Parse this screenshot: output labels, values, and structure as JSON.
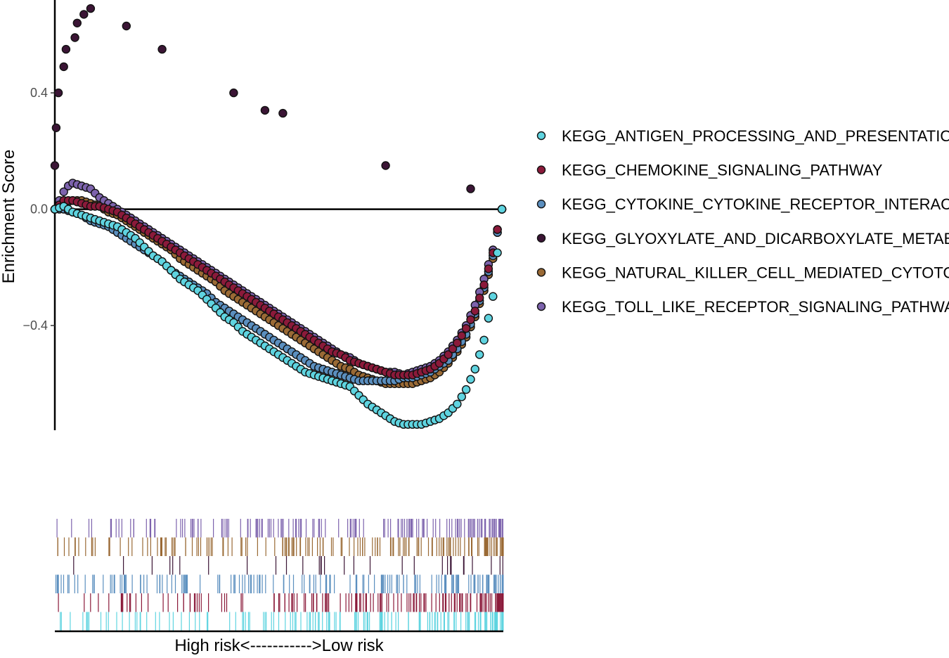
{
  "chart_data": {
    "type": "scatter",
    "title": "",
    "ylabel": "Enrichment Score",
    "xlabel": "High risk<----------->Low risk",
    "xlim": [
      0,
      100
    ],
    "ylim": [
      -0.76,
      0.7
    ],
    "yticks": [
      0.4,
      0.0,
      -0.4
    ],
    "ytick_labels": [
      "0.4",
      "0.0",
      "−0.4"
    ],
    "reference_line": 0.0,
    "legend": "right",
    "series": [
      {
        "name": "KEGG_ANTIGEN_PROCESSING_AND_PRESENTATION",
        "color": "#5fd4e0",
        "points": [
          [
            0,
            0
          ],
          [
            2,
            0.01
          ],
          [
            4,
            -0.01
          ],
          [
            6,
            -0.02
          ],
          [
            8,
            -0.03
          ],
          [
            10,
            -0.04
          ],
          [
            12,
            -0.05
          ],
          [
            14,
            -0.06
          ],
          [
            16,
            -0.08
          ],
          [
            18,
            -0.1
          ],
          [
            20,
            -0.13
          ],
          [
            22,
            -0.16
          ],
          [
            24,
            -0.18
          ],
          [
            26,
            -0.21
          ],
          [
            28,
            -0.24
          ],
          [
            30,
            -0.26
          ],
          [
            32,
            -0.28
          ],
          [
            34,
            -0.31
          ],
          [
            36,
            -0.34
          ],
          [
            38,
            -0.37
          ],
          [
            40,
            -0.39
          ],
          [
            42,
            -0.42
          ],
          [
            44,
            -0.44
          ],
          [
            46,
            -0.46
          ],
          [
            48,
            -0.48
          ],
          [
            50,
            -0.5
          ],
          [
            52,
            -0.52
          ],
          [
            54,
            -0.54
          ],
          [
            56,
            -0.56
          ],
          [
            58,
            -0.57
          ],
          [
            60,
            -0.58
          ],
          [
            62,
            -0.59
          ],
          [
            64,
            -0.6
          ],
          [
            66,
            -0.61
          ],
          [
            68,
            -0.64
          ],
          [
            70,
            -0.67
          ],
          [
            72,
            -0.69
          ],
          [
            74,
            -0.71
          ],
          [
            76,
            -0.73
          ],
          [
            78,
            -0.74
          ],
          [
            80,
            -0.74
          ],
          [
            82,
            -0.74
          ],
          [
            84,
            -0.73
          ],
          [
            86,
            -0.72
          ],
          [
            88,
            -0.7
          ],
          [
            90,
            -0.67
          ],
          [
            92,
            -0.62
          ],
          [
            94,
            -0.55
          ],
          [
            96,
            -0.45
          ],
          [
            98,
            -0.3
          ],
          [
            99,
            -0.15
          ],
          [
            100,
            0
          ]
        ]
      },
      {
        "name": "KEGG_CHEMOKINE_SIGNALING_PATHWAY",
        "color": "#8b1a3a",
        "points": [
          [
            0,
            0
          ],
          [
            2,
            0.03
          ],
          [
            4,
            0.03
          ],
          [
            6,
            0.02
          ],
          [
            8,
            0.01
          ],
          [
            10,
            0.01
          ],
          [
            12,
            0
          ],
          [
            14,
            -0.01
          ],
          [
            16,
            -0.03
          ],
          [
            18,
            -0.05
          ],
          [
            20,
            -0.07
          ],
          [
            22,
            -0.09
          ],
          [
            24,
            -0.11
          ],
          [
            26,
            -0.13
          ],
          [
            28,
            -0.15
          ],
          [
            30,
            -0.17
          ],
          [
            32,
            -0.19
          ],
          [
            34,
            -0.21
          ],
          [
            36,
            -0.23
          ],
          [
            38,
            -0.25
          ],
          [
            40,
            -0.27
          ],
          [
            42,
            -0.29
          ],
          [
            44,
            -0.31
          ],
          [
            46,
            -0.33
          ],
          [
            48,
            -0.35
          ],
          [
            50,
            -0.37
          ],
          [
            52,
            -0.39
          ],
          [
            54,
            -0.41
          ],
          [
            56,
            -0.43
          ],
          [
            58,
            -0.45
          ],
          [
            60,
            -0.47
          ],
          [
            62,
            -0.49
          ],
          [
            64,
            -0.5
          ],
          [
            66,
            -0.52
          ],
          [
            68,
            -0.53
          ],
          [
            70,
            -0.54
          ],
          [
            72,
            -0.55
          ],
          [
            74,
            -0.56
          ],
          [
            76,
            -0.57
          ],
          [
            78,
            -0.57
          ],
          [
            80,
            -0.57
          ],
          [
            82,
            -0.56
          ],
          [
            84,
            -0.55
          ],
          [
            86,
            -0.53
          ],
          [
            88,
            -0.5
          ],
          [
            90,
            -0.46
          ],
          [
            92,
            -0.41
          ],
          [
            94,
            -0.35
          ],
          [
            96,
            -0.26
          ],
          [
            98,
            -0.15
          ],
          [
            99,
            -0.07
          ],
          [
            100,
            0
          ]
        ]
      },
      {
        "name": "KEGG_CYTOKINE_CYTOKINE_RECEPTOR_INTERACTION",
        "color": "#5b8fbf",
        "points": [
          [
            0,
            0
          ],
          [
            2,
            0
          ],
          [
            4,
            -0.01
          ],
          [
            6,
            -0.02
          ],
          [
            8,
            -0.04
          ],
          [
            10,
            -0.05
          ],
          [
            12,
            -0.06
          ],
          [
            14,
            -0.08
          ],
          [
            16,
            -0.1
          ],
          [
            18,
            -0.12
          ],
          [
            20,
            -0.14
          ],
          [
            22,
            -0.16
          ],
          [
            24,
            -0.18
          ],
          [
            26,
            -0.21
          ],
          [
            28,
            -0.23
          ],
          [
            30,
            -0.25
          ],
          [
            32,
            -0.27
          ],
          [
            34,
            -0.29
          ],
          [
            36,
            -0.32
          ],
          [
            38,
            -0.34
          ],
          [
            40,
            -0.36
          ],
          [
            42,
            -0.38
          ],
          [
            44,
            -0.4
          ],
          [
            46,
            -0.42
          ],
          [
            48,
            -0.44
          ],
          [
            50,
            -0.46
          ],
          [
            52,
            -0.48
          ],
          [
            54,
            -0.5
          ],
          [
            56,
            -0.52
          ],
          [
            58,
            -0.54
          ],
          [
            60,
            -0.55
          ],
          [
            62,
            -0.56
          ],
          [
            64,
            -0.57
          ],
          [
            66,
            -0.58
          ],
          [
            68,
            -0.59
          ],
          [
            70,
            -0.59
          ],
          [
            72,
            -0.59
          ],
          [
            74,
            -0.59
          ],
          [
            76,
            -0.59
          ],
          [
            78,
            -0.58
          ],
          [
            80,
            -0.58
          ],
          [
            82,
            -0.57
          ],
          [
            84,
            -0.56
          ],
          [
            86,
            -0.54
          ],
          [
            88,
            -0.52
          ],
          [
            90,
            -0.48
          ],
          [
            92,
            -0.43
          ],
          [
            94,
            -0.36
          ],
          [
            96,
            -0.27
          ],
          [
            98,
            -0.16
          ],
          [
            99,
            -0.08
          ],
          [
            100,
            0
          ]
        ]
      },
      {
        "name": "KEGG_GLYOXYLATE_AND_DICARBOXYLATE_METABOLISM",
        "color": "#3b1535",
        "points": [
          [
            0,
            0.15
          ],
          [
            0.3,
            0.28
          ],
          [
            0.8,
            0.4
          ],
          [
            2,
            0.49
          ],
          [
            2.5,
            0.55
          ],
          [
            4.5,
            0.59
          ],
          [
            5,
            0.64
          ],
          [
            6.5,
            0.67
          ],
          [
            8,
            0.69
          ],
          [
            16,
            0.63
          ],
          [
            24,
            0.55
          ],
          [
            40,
            0.4
          ],
          [
            47,
            0.34
          ],
          [
            51,
            0.33
          ],
          [
            74,
            0.15
          ],
          [
            93,
            0.07
          ]
        ]
      },
      {
        "name": "KEGG_NATURAL_KILLER_CELL_MEDIATED_CYTOTOXICITY",
        "color": "#9a6a35",
        "points": [
          [
            0,
            0
          ],
          [
            2,
            0.02
          ],
          [
            4,
            0.03
          ],
          [
            6,
            0.03
          ],
          [
            8,
            0.02
          ],
          [
            10,
            0.01
          ],
          [
            12,
            -0.01
          ],
          [
            14,
            -0.02
          ],
          [
            16,
            -0.04
          ],
          [
            18,
            -0.06
          ],
          [
            20,
            -0.08
          ],
          [
            22,
            -0.1
          ],
          [
            24,
            -0.12
          ],
          [
            26,
            -0.14
          ],
          [
            28,
            -0.17
          ],
          [
            30,
            -0.19
          ],
          [
            32,
            -0.21
          ],
          [
            34,
            -0.23
          ],
          [
            36,
            -0.25
          ],
          [
            38,
            -0.28
          ],
          [
            40,
            -0.3
          ],
          [
            42,
            -0.32
          ],
          [
            44,
            -0.34
          ],
          [
            46,
            -0.36
          ],
          [
            48,
            -0.38
          ],
          [
            50,
            -0.4
          ],
          [
            52,
            -0.42
          ],
          [
            54,
            -0.44
          ],
          [
            56,
            -0.46
          ],
          [
            58,
            -0.48
          ],
          [
            60,
            -0.5
          ],
          [
            62,
            -0.52
          ],
          [
            64,
            -0.54
          ],
          [
            66,
            -0.55
          ],
          [
            68,
            -0.57
          ],
          [
            70,
            -0.58
          ],
          [
            72,
            -0.59
          ],
          [
            74,
            -0.6
          ],
          [
            76,
            -0.6
          ],
          [
            78,
            -0.6
          ],
          [
            80,
            -0.6
          ],
          [
            82,
            -0.59
          ],
          [
            84,
            -0.58
          ],
          [
            86,
            -0.56
          ],
          [
            88,
            -0.53
          ],
          [
            90,
            -0.49
          ],
          [
            92,
            -0.44
          ],
          [
            94,
            -0.37
          ],
          [
            96,
            -0.28
          ],
          [
            98,
            -0.17
          ],
          [
            99,
            -0.08
          ],
          [
            100,
            0
          ]
        ]
      },
      {
        "name": "KEGG_TOLL_LIKE_RECEPTOR_SIGNALING_PATHWAY",
        "color": "#7d63ad",
        "points": [
          [
            0,
            0
          ],
          [
            1,
            0.03
          ],
          [
            2,
            0.06
          ],
          [
            3,
            0.08
          ],
          [
            4,
            0.09
          ],
          [
            6,
            0.08
          ],
          [
            8,
            0.07
          ],
          [
            10,
            0.04
          ],
          [
            12,
            0.02
          ],
          [
            14,
            0
          ],
          [
            16,
            -0.02
          ],
          [
            18,
            -0.04
          ],
          [
            20,
            -0.06
          ],
          [
            22,
            -0.08
          ],
          [
            24,
            -0.1
          ],
          [
            26,
            -0.12
          ],
          [
            28,
            -0.14
          ],
          [
            30,
            -0.16
          ],
          [
            32,
            -0.18
          ],
          [
            34,
            -0.2
          ],
          [
            36,
            -0.22
          ],
          [
            38,
            -0.24
          ],
          [
            40,
            -0.26
          ],
          [
            42,
            -0.28
          ],
          [
            44,
            -0.3
          ],
          [
            46,
            -0.32
          ],
          [
            48,
            -0.34
          ],
          [
            50,
            -0.36
          ],
          [
            52,
            -0.38
          ],
          [
            54,
            -0.4
          ],
          [
            56,
            -0.42
          ],
          [
            58,
            -0.44
          ],
          [
            60,
            -0.46
          ],
          [
            62,
            -0.48
          ],
          [
            64,
            -0.5
          ],
          [
            66,
            -0.51
          ],
          [
            68,
            -0.53
          ],
          [
            70,
            -0.54
          ],
          [
            72,
            -0.55
          ],
          [
            74,
            -0.56
          ],
          [
            76,
            -0.56
          ],
          [
            78,
            -0.57
          ],
          [
            80,
            -0.56
          ],
          [
            82,
            -0.55
          ],
          [
            84,
            -0.54
          ],
          [
            86,
            -0.52
          ],
          [
            88,
            -0.49
          ],
          [
            90,
            -0.45
          ],
          [
            92,
            -0.4
          ],
          [
            94,
            -0.33
          ],
          [
            96,
            -0.24
          ],
          [
            98,
            -0.14
          ],
          [
            99,
            -0.07
          ],
          [
            100,
            0
          ]
        ]
      }
    ],
    "rug_colors": [
      "#7d63ad",
      "#9a6a35",
      "#3b1535",
      "#5b8fbf",
      "#8b1a3a",
      "#5fd4e0"
    ]
  }
}
